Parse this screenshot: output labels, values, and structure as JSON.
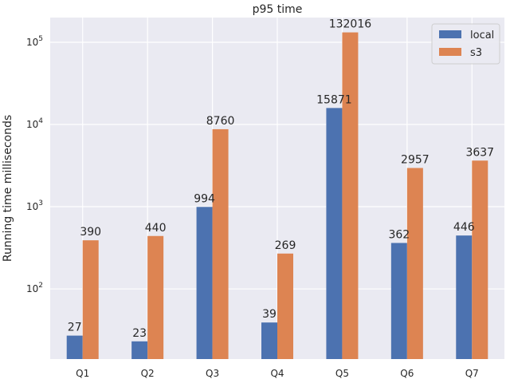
{
  "chart_data": {
    "type": "bar",
    "title": "p95 time",
    "xlabel": "",
    "ylabel": "Running time milliseconds",
    "yscale": "log",
    "ylim": [
      14,
      200000
    ],
    "grid": true,
    "legend_position": "top-right",
    "categories": [
      "Q1",
      "Q2",
      "Q3",
      "Q4",
      "Q5",
      "Q6",
      "Q7"
    ],
    "series": [
      {
        "name": "local",
        "color": "#4c72b0",
        "values": [
          27,
          23,
          994,
          39,
          15871,
          362,
          446
        ],
        "labels": [
          "27",
          "23",
          "994",
          "39",
          "15871",
          "362",
          "446"
        ]
      },
      {
        "name": "s3",
        "color": "#dd8452",
        "values": [
          390,
          440,
          8760,
          269,
          132016,
          2957,
          3637
        ],
        "labels": [
          "390",
          "440",
          "8760",
          "269",
          "132016",
          "2957",
          "3637"
        ]
      }
    ],
    "y_ticks": [
      {
        "value": 100,
        "base": "10",
        "exp": "2"
      },
      {
        "value": 1000,
        "base": "10",
        "exp": "3"
      },
      {
        "value": 10000,
        "base": "10",
        "exp": "4"
      },
      {
        "value": 100000,
        "base": "10",
        "exp": "5"
      }
    ]
  }
}
